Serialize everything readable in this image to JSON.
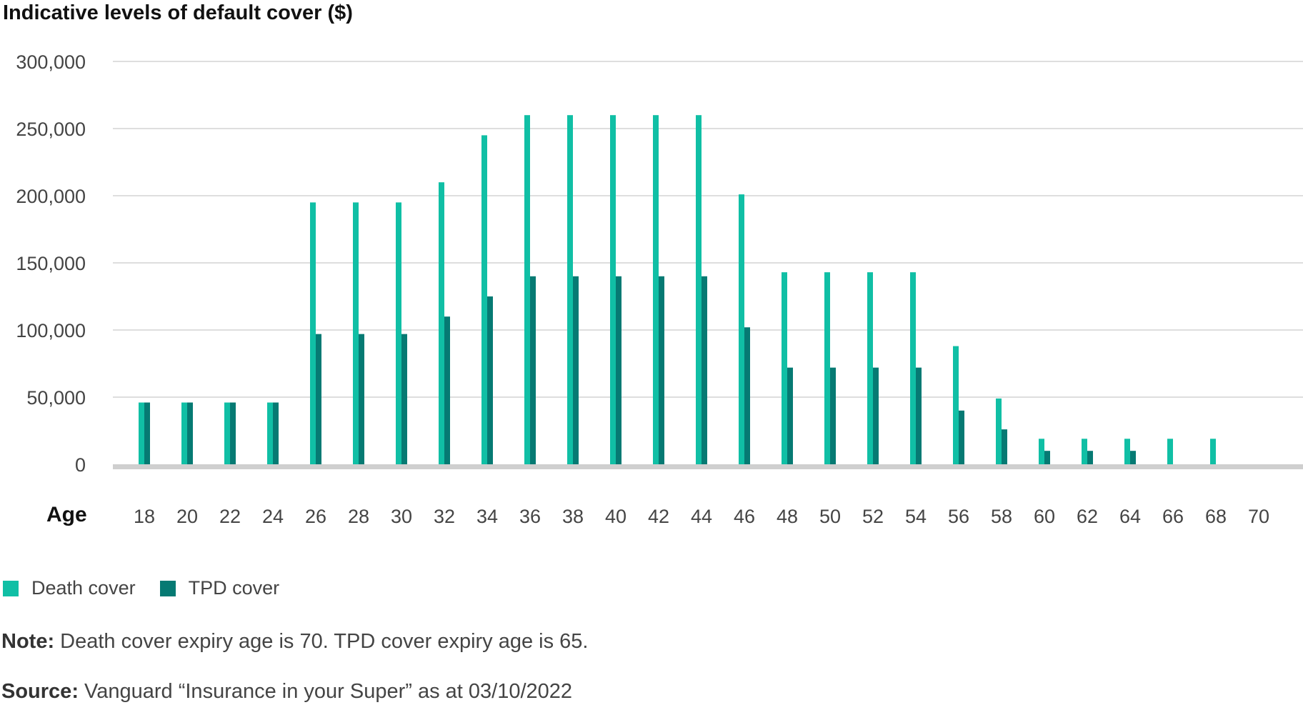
{
  "chart_data": {
    "type": "bar",
    "title": "Indicative levels of default cover ($)",
    "xlabel": "Age",
    "ylabel": "",
    "ylim": [
      0,
      300000
    ],
    "yticks": [
      0,
      50000,
      100000,
      150000,
      200000,
      250000,
      300000
    ],
    "ytick_labels": [
      "0",
      "50,000",
      "100,000",
      "150,000",
      "200,000",
      "250,000",
      "300,000"
    ],
    "categories": [
      "18",
      "20",
      "22",
      "24",
      "26",
      "28",
      "30",
      "32",
      "34",
      "36",
      "38",
      "40",
      "42",
      "44",
      "46",
      "48",
      "50",
      "52",
      "54",
      "56",
      "58",
      "60",
      "62",
      "64",
      "66",
      "68",
      "70"
    ],
    "series": [
      {
        "name": "Death cover",
        "color": "#10bfa5",
        "values": [
          46000,
          46000,
          46000,
          46000,
          195000,
          195000,
          195000,
          210000,
          245000,
          260000,
          260000,
          260000,
          260000,
          260000,
          201000,
          143000,
          143000,
          143000,
          143000,
          88000,
          49000,
          19000,
          19000,
          19000,
          19000,
          19000,
          0
        ]
      },
      {
        "name": "TPD cover",
        "color": "#067a73",
        "values": [
          46000,
          46000,
          46000,
          46000,
          97000,
          97000,
          97000,
          110000,
          125000,
          140000,
          140000,
          140000,
          140000,
          140000,
          102000,
          72000,
          72000,
          72000,
          72000,
          40000,
          26000,
          10000,
          10000,
          10000,
          0,
          0,
          0
        ]
      }
    ],
    "grid": true,
    "legend": "bottom-left"
  },
  "footer": {
    "note_label": "Note:",
    "note_text": "Death cover expiry age is 70. TPD cover expiry age is 65.",
    "source_label": "Source:",
    "source_text": "Vanguard “Insurance in your Super” as at 03/10/2022"
  }
}
